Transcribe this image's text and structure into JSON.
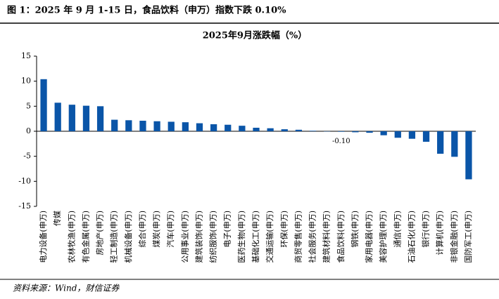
{
  "header": "图 1：2025 年 9 月 1-15 日，食品饮料（申万）指数下跌 0.10%",
  "source": "资料来源：Wind，财信证券",
  "chart_data": {
    "type": "bar",
    "title": "2025年9月涨跌幅（%）",
    "categories": [
      "电力设备(申万)",
      "传媒",
      "农林牧渔(申万)",
      "有色金属(申万)",
      "房地产(申万)",
      "轻工制造(申万)",
      "机械设备(申万)",
      "综合(申万)",
      "煤炭(申万)",
      "汽车(申万)",
      "公用事业(申万)",
      "建筑装饰(申万)",
      "纺织服饰(申万)",
      "电子(申万)",
      "医药生物(申万)",
      "基础化工(申万)",
      "交通运输(申万)",
      "环保(申万)",
      "商贸零售(申万)",
      "社会服务(申万)",
      "建筑材料(申万)",
      "食品饮料(申万)",
      "钢铁(申万)",
      "家用电器(申万)",
      "美容护理(申万)",
      "通信(申万)",
      "石油石化(申万)",
      "银行(申万)",
      "计算机(申万)",
      "非银金融(申万)",
      "国防军工(申万)"
    ],
    "values": [
      10.4,
      5.7,
      5.3,
      5.1,
      5.0,
      2.3,
      2.2,
      2.1,
      2.0,
      1.9,
      1.8,
      1.6,
      1.4,
      1.3,
      1.1,
      0.7,
      0.6,
      0.4,
      0.3,
      0.1,
      -0.05,
      -0.1,
      -0.2,
      -0.3,
      -0.8,
      -1.3,
      -1.5,
      -2.1,
      -4.5,
      -5.1,
      -9.6
    ],
    "value_labels": [
      null,
      null,
      null,
      null,
      null,
      null,
      null,
      null,
      null,
      null,
      null,
      null,
      null,
      null,
      null,
      null,
      null,
      null,
      null,
      null,
      null,
      "-0.10",
      null,
      null,
      null,
      null,
      null,
      null,
      null,
      null,
      null
    ],
    "color": "#0a55a8",
    "ylim": [
      -15,
      15
    ],
    "yticks": [
      -15,
      -10,
      -5,
      0,
      5,
      10,
      15
    ],
    "grid": false
  }
}
